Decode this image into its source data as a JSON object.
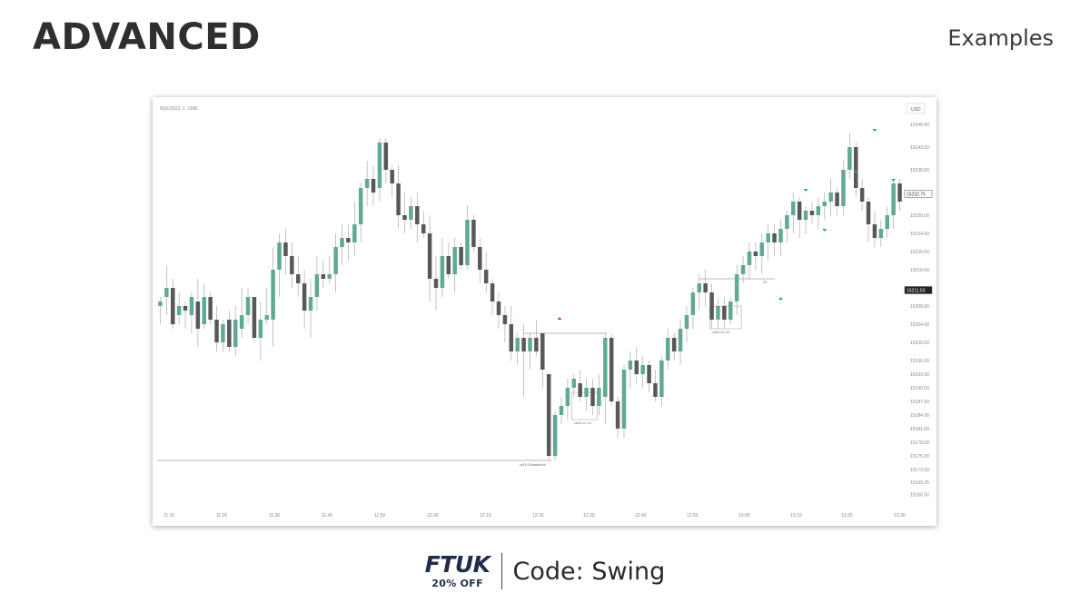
{
  "page": {
    "title": "ADVANCED",
    "section_label": "Examples"
  },
  "footer": {
    "logo_text": "FTUK",
    "logo_subtext": "20% OFF",
    "promo_text": "Code: Swing"
  },
  "chart_data": {
    "type": "candlestick",
    "title": "",
    "symbol": "NQU2023, 1, CME",
    "currency": "USD",
    "price_range": [
      15164,
      15250
    ],
    "y_ticks": [
      "15248.00",
      "15243.00",
      "15238.00",
      "15232.75",
      "15228.00",
      "15224.00",
      "15220.00",
      "15216.00",
      "15211.50",
      "15208.00",
      "15204.00",
      "15200.00",
      "15196.00",
      "15193.00",
      "15190.00",
      "15187.00",
      "15184.00",
      "15181.00",
      "15178.00",
      "15175.00",
      "15172.00",
      "15169.25",
      "15166.50"
    ],
    "x_ticks": [
      "11:10",
      "11:20",
      "11:30",
      "11:40",
      "11:50",
      "12:00",
      "12:10",
      "12:20",
      "12:30",
      "12:40",
      "12:50",
      "13:00",
      "13:10",
      "13:20",
      "13:30"
    ],
    "last_price": "15232.75",
    "marked_price": "15211.50",
    "colors": {
      "up": "#5fa996",
      "down": "#585858",
      "wick": "#aaaaaa",
      "arrow_up": "#26a69a",
      "arrow_down": "#e53935"
    },
    "candles": [
      [
        15208,
        15210,
        15204,
        15209
      ],
      [
        15210,
        15217,
        15206,
        15212
      ],
      [
        15212,
        15214,
        15203,
        15204
      ],
      [
        15206,
        15211,
        15204,
        15208
      ],
      [
        15208,
        15209,
        15203,
        15207
      ],
      [
        15206,
        15211,
        15202,
        15210
      ],
      [
        15209,
        15214,
        15199,
        15203
      ],
      [
        15204,
        15213,
        15203,
        15210
      ],
      [
        15210,
        15211,
        15204,
        15205
      ],
      [
        15205,
        15208,
        15198,
        15200
      ],
      [
        15200,
        15205,
        15198,
        15204
      ],
      [
        15205,
        15207,
        15198,
        15199
      ],
      [
        15199,
        15208,
        15197,
        15205
      ],
      [
        15203,
        15212,
        15201,
        15206
      ],
      [
        15206,
        15212,
        15204,
        15210
      ],
      [
        15210,
        15210,
        15200,
        15201
      ],
      [
        15201,
        15209,
        15196,
        15205
      ],
      [
        15205,
        15212,
        15204,
        15206
      ],
      [
        15205,
        15221,
        15199,
        15216
      ],
      [
        15216,
        15224,
        15210,
        15222
      ],
      [
        15222,
        15225,
        15215,
        15219
      ],
      [
        15219,
        15222,
        15212,
        15215
      ],
      [
        15215,
        15219,
        15210,
        15213
      ],
      [
        15213,
        15216,
        15203,
        15207
      ],
      [
        15207,
        15214,
        15201,
        15210
      ],
      [
        15210,
        15219,
        15207,
        15215
      ],
      [
        15215,
        15218,
        15212,
        15214
      ],
      [
        15214,
        15219,
        15213,
        15215
      ],
      [
        15215,
        15224,
        15211,
        15221
      ],
      [
        15221,
        15226,
        15217,
        15223
      ],
      [
        15223,
        15226,
        15218,
        15222
      ],
      [
        15222,
        15231,
        15219,
        15226
      ],
      [
        15226,
        15235,
        15222,
        15234
      ],
      [
        15234,
        15240,
        15230,
        15236
      ],
      [
        15236,
        15239,
        15230,
        15233
      ],
      [
        15234,
        15245,
        15231,
        15244
      ],
      [
        15244,
        15245,
        15235,
        15238
      ],
      [
        15238,
        15239,
        15232,
        15235
      ],
      [
        15235,
        15239,
        15225,
        15228
      ],
      [
        15228,
        15233,
        15224,
        15227
      ],
      [
        15227,
        15232,
        15225,
        15230
      ],
      [
        15230,
        15233,
        15222,
        15226
      ],
      [
        15226,
        15229,
        15223,
        15224
      ],
      [
        15224,
        15228,
        15209,
        15214
      ],
      [
        15214,
        15219,
        15207,
        15212
      ],
      [
        15212,
        15223,
        15210,
        15219
      ],
      [
        15219,
        15222,
        15214,
        15215
      ],
      [
        15215,
        15223,
        15211,
        15221
      ],
      [
        15221,
        15222,
        15216,
        15217
      ],
      [
        15217,
        15230,
        15216,
        15227
      ],
      [
        15227,
        15228,
        15220,
        15221
      ],
      [
        15221,
        15223,
        15213,
        15216
      ],
      [
        15216,
        15220,
        15211,
        15213
      ],
      [
        15213,
        15214,
        15206,
        15209
      ],
      [
        15209,
        15211,
        15203,
        15206
      ],
      [
        15206,
        15208,
        15200,
        15204
      ],
      [
        15204,
        15208,
        15196,
        15198
      ],
      [
        15198,
        15202,
        15195,
        15201
      ],
      [
        15201,
        15204,
        15188,
        15198
      ],
      [
        15198,
        15202,
        15194,
        15201
      ],
      [
        15201,
        15205,
        15197,
        15198
      ],
      [
        15202,
        15202,
        15190,
        15194
      ],
      [
        15193,
        15193,
        15174,
        15175
      ],
      [
        15175,
        15185,
        15174,
        15184
      ],
      [
        15184,
        15188,
        15182,
        15186
      ],
      [
        15186,
        15192,
        15183,
        15190
      ],
      [
        15190,
        15193,
        15188,
        15192
      ],
      [
        15191,
        15194,
        15187,
        15188
      ],
      [
        15188,
        15192,
        15185,
        15190
      ],
      [
        15190,
        15192,
        15184,
        15186
      ],
      [
        15186,
        15193,
        15184,
        15190
      ],
      [
        15188,
        15202,
        15182,
        15201
      ],
      [
        15201,
        15202,
        15186,
        15187
      ],
      [
        15187,
        15188,
        15179,
        15181
      ],
      [
        15181,
        15195,
        15179,
        15194
      ],
      [
        15194,
        15198,
        15190,
        15196
      ],
      [
        15196,
        15199,
        15191,
        15193
      ],
      [
        15193,
        15197,
        15190,
        15195
      ],
      [
        15195,
        15196,
        15189,
        15191
      ],
      [
        15191,
        15194,
        15187,
        15188
      ],
      [
        15188,
        15197,
        15186,
        15196
      ],
      [
        15196,
        15203,
        15194,
        15201
      ],
      [
        15201,
        15202,
        15196,
        15198
      ],
      [
        15198,
        15205,
        15195,
        15203
      ],
      [
        15203,
        15208,
        15200,
        15206
      ],
      [
        15206,
        15212,
        15203,
        15211
      ],
      [
        15211,
        15215,
        15207,
        15213
      ],
      [
        15213,
        15216,
        15208,
        15211
      ],
      [
        15211,
        15213,
        15203,
        15205
      ],
      [
        15205,
        15210,
        15203,
        15208
      ],
      [
        15208,
        15210,
        15203,
        15205
      ],
      [
        15205,
        15210,
        15204,
        15209
      ],
      [
        15209,
        15217,
        15206,
        15215
      ],
      [
        15215,
        15219,
        15213,
        15217
      ],
      [
        15217,
        15222,
        15214,
        15220
      ],
      [
        15220,
        15222,
        15216,
        15219
      ],
      [
        15219,
        15224,
        15215,
        15222
      ],
      [
        15222,
        15226,
        15218,
        15224
      ],
      [
        15224,
        15226,
        15219,
        15222
      ],
      [
        15222,
        15227,
        15219,
        15225
      ],
      [
        15225,
        15229,
        15222,
        15228
      ],
      [
        15228,
        15233,
        15224,
        15231
      ],
      [
        15231,
        15232,
        15223,
        15227
      ],
      [
        15227,
        15230,
        15224,
        15229
      ],
      [
        15229,
        15231,
        15226,
        15228
      ],
      [
        15228,
        15232,
        15225,
        15230
      ],
      [
        15230,
        15233,
        15227,
        15231
      ],
      [
        15231,
        15236,
        15228,
        15233
      ],
      [
        15233,
        15234,
        15228,
        15230
      ],
      [
        15230,
        15240,
        15228,
        15238
      ],
      [
        15238,
        15246,
        15236,
        15243
      ],
      [
        15243,
        15244,
        15232,
        15234
      ],
      [
        15234,
        15236,
        15229,
        15231
      ],
      [
        15231,
        15232,
        15222,
        15226
      ],
      [
        15226,
        15229,
        15221,
        15223
      ],
      [
        15223,
        15227,
        15221,
        15225
      ],
      [
        15225,
        15230,
        15223,
        15228
      ],
      [
        15228,
        15236,
        15225,
        15235
      ],
      [
        15235,
        15236,
        15229,
        15231
      ]
    ],
    "annotations": {
      "liquidity_label": "m15 Orderblock",
      "box_label_1": "valid on s3",
      "box_label_2": "valid on m1",
      "mid_label": "2R"
    }
  }
}
